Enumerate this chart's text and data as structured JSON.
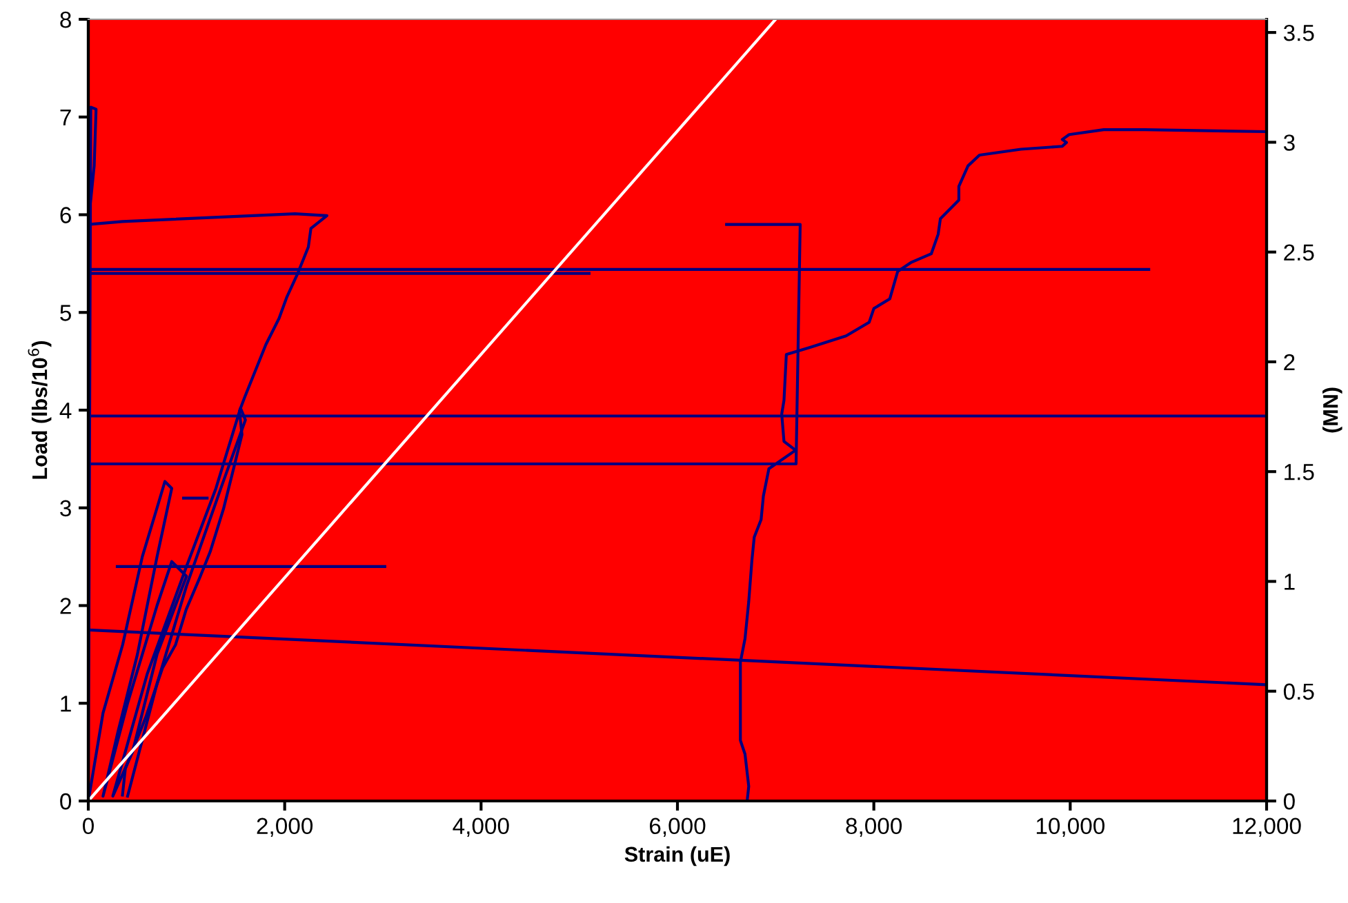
{
  "chart_data": {
    "type": "line",
    "xlabel": "Strain (uE)",
    "ylabel": "Load (lbs/10$^{6}$)",
    "y2label": "(MN)",
    "xlim": [
      0,
      12000
    ],
    "xticks": [
      {
        "value": 0,
        "label": "0"
      },
      {
        "value": 2000,
        "label": "2,000"
      },
      {
        "value": 4000,
        "label": "4,000"
      },
      {
        "value": 6000,
        "label": "6,000"
      },
      {
        "value": 8000,
        "label": "8,000"
      },
      {
        "value": 10000,
        "label": "10,000"
      },
      {
        "value": 12000,
        "label": "12,000"
      }
    ],
    "ylim": [
      0,
      8
    ],
    "yticks": [
      0,
      1,
      2,
      3,
      4,
      5,
      6,
      7,
      8
    ],
    "y2lim": [
      0,
      3.56
    ],
    "y2ticks": [
      0,
      0.5,
      1,
      1.5,
      2,
      2.5,
      3,
      3.5
    ],
    "grid": false,
    "marker": "none",
    "line_style": "solid",
    "series": [
      {
        "color": "#000080",
        "x": [
          0,
          150,
          350,
          550,
          700,
          780,
          850,
          700,
          500,
          300,
          150,
          400,
          700,
          850,
          1000,
          700,
          450,
          250,
          600,
          1000,
          1300,
          1550,
          1600,
          1350,
          1000,
          700,
          400
        ],
        "values": [
          0,
          0.9,
          1.6,
          2.5,
          3.0,
          3.27,
          3.2,
          2.5,
          1.5,
          0.7,
          0.05,
          1.0,
          2.0,
          2.45,
          2.3,
          1.5,
          0.5,
          0.05,
          1.3,
          2.4,
          3.2,
          4.02,
          3.9,
          3.2,
          2.2,
          1.2,
          0.05
        ]
      },
      {
        "color": "#000080",
        "x": [
          0,
          25,
          79,
          60,
          30,
          0
        ],
        "values": [
          0,
          7.1,
          7.08,
          6.5,
          6.2,
          5.9
        ]
      },
      {
        "color": "#000080",
        "x": [
          0,
          348,
          2105,
          2430,
          2267,
          2241,
          2133,
          2023,
          1943,
          1808,
          1700,
          1592,
          1539,
          1565,
          1484,
          1377,
          1241,
          1133,
          997,
          889,
          755,
          590,
          377,
          348
        ],
        "values": [
          5.9,
          5.93,
          6.01,
          5.99,
          5.86,
          5.67,
          5.4,
          5.16,
          4.94,
          4.67,
          4.4,
          4.13,
          3.99,
          3.75,
          3.42,
          2.99,
          2.55,
          2.28,
          1.96,
          1.6,
          1.36,
          0.87,
          0.33,
          0.06
        ]
      },
      {
        "color": "#000080",
        "x": [
          295,
          3020
        ],
        "values": [
          2.4,
          2.4
        ]
      },
      {
        "color": "#000080",
        "x": [
          970,
          1210
        ],
        "values": [
          3.1,
          3.1
        ]
      },
      {
        "color": "#000080",
        "x": [
          0,
          10800
        ],
        "values": [
          5.44,
          5.44
        ]
      },
      {
        "color": "#000080",
        "x": [
          0,
          5100
        ],
        "values": [
          5.4,
          5.4
        ]
      },
      {
        "color": "#000080",
        "x": [
          0,
          12000
        ],
        "values": [
          3.94,
          3.94
        ]
      },
      {
        "color": "#000080",
        "x": [
          0,
          12000
        ],
        "values": [
          1.75,
          1.19
        ]
      },
      {
        "color": "#000080",
        "x": [
          0,
          7208,
          7250,
          7250,
          6500
        ],
        "values": [
          3.45,
          3.45,
          5.9,
          5.9,
          5.9
        ]
      },
      {
        "color": "#000080",
        "x": [
          6712,
          6726,
          6688,
          6641,
          6641,
          6688,
          6726,
          6758,
          6782,
          6852,
          6875,
          6931,
          7203,
          7085,
          7062,
          7085,
          7109,
          7344,
          7718,
          7953,
          8000,
          8163,
          8243,
          8377,
          8585,
          8655,
          8678,
          8866,
          8866,
          8959,
          9076,
          9498,
          9919,
          9962,
          9919,
          9989,
          10341,
          10762,
          12000
        ],
        "values": [
          0.02,
          0.15,
          0.48,
          0.62,
          1.42,
          1.66,
          2.04,
          2.46,
          2.7,
          2.88,
          3.12,
          3.4,
          3.59,
          3.68,
          3.96,
          4.1,
          4.57,
          4.64,
          4.76,
          4.9,
          5.04,
          5.14,
          5.42,
          5.51,
          5.6,
          5.8,
          5.96,
          6.15,
          6.29,
          6.5,
          6.61,
          6.67,
          6.7,
          6.74,
          6.77,
          6.82,
          6.87,
          6.87,
          6.85
        ]
      },
      {
        "color": "#ffffff",
        "x": [
          0,
          7000
        ],
        "values": [
          0,
          8
        ]
      }
    ]
  }
}
